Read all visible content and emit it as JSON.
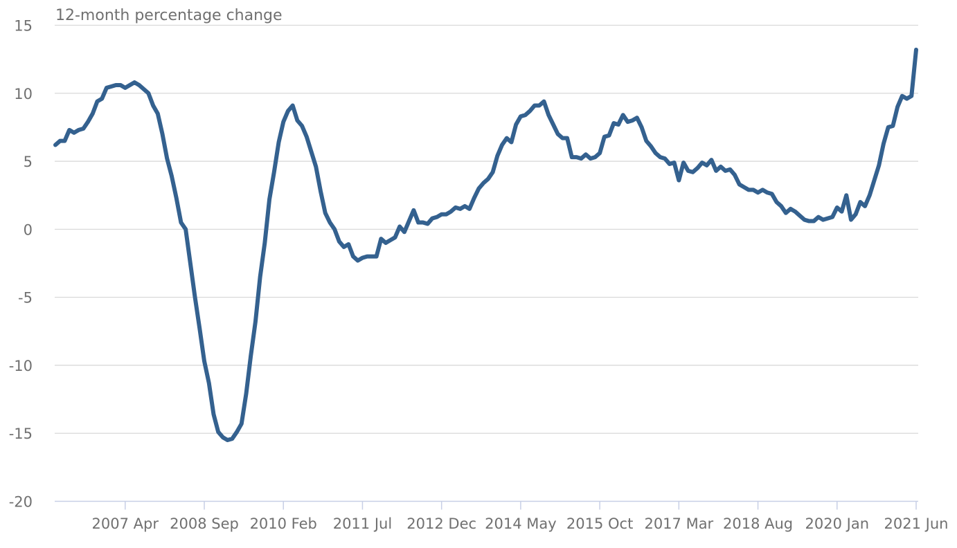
{
  "chart_data": {
    "type": "line",
    "title": "",
    "ylabel": "12-month percentage change",
    "xlabel": "",
    "ylim": [
      -20,
      15
    ],
    "yticks": [
      15,
      10,
      5,
      0,
      -5,
      -10,
      -15,
      -20
    ],
    "ytick_labels": [
      "15",
      "10",
      "5",
      "0",
      "-5",
      "-10",
      "-15",
      "-20"
    ],
    "xticks": [
      "2007 Apr",
      "2008 Sep",
      "2010 Feb",
      "2011 Jul",
      "2012 Dec",
      "2014 May",
      "2015 Oct",
      "2017 Mar",
      "2018 Aug",
      "2020 Jan",
      "2021 Jun"
    ],
    "grid": true,
    "legend": "none",
    "colors": {
      "series": "#34618f",
      "grid": "#d9d9d9",
      "axis": "#c7cfe6",
      "text": "#707070"
    },
    "series": [
      {
        "x_start": "2006 Jan",
        "x_end": "2021 Jun",
        "values": [
          6.2,
          6.5,
          6.5,
          7.3,
          7.1,
          7.3,
          7.4,
          7.9,
          8.5,
          9.4,
          9.6,
          10.4,
          10.5,
          10.6,
          10.6,
          10.4,
          10.6,
          10.8,
          10.6,
          10.3,
          10.0,
          9.1,
          8.5,
          7.0,
          5.2,
          3.9,
          2.3,
          0.5,
          0.0,
          -2.5,
          -5.0,
          -7.3,
          -9.7,
          -11.3,
          -13.6,
          -14.9,
          -15.3,
          -15.5,
          -15.4,
          -14.9,
          -14.3,
          -12.1,
          -9.3,
          -6.8,
          -3.5,
          -1.0,
          2.2,
          4.2,
          6.4,
          7.9,
          8.7,
          9.1,
          8.0,
          7.6,
          6.8,
          5.7,
          4.6,
          2.8,
          1.2,
          0.5,
          0.0,
          -0.9,
          -1.3,
          -1.1,
          -2.0,
          -2.3,
          -2.1,
          -2.0,
          -2.0,
          -2.0,
          -0.7,
          -1.0,
          -0.8,
          -0.6,
          0.2,
          -0.2,
          0.6,
          1.4,
          0.5,
          0.5,
          0.4,
          0.8,
          0.9,
          1.1,
          1.1,
          1.3,
          1.6,
          1.5,
          1.7,
          1.5,
          2.3,
          3.0,
          3.4,
          3.7,
          4.2,
          5.4,
          6.2,
          6.7,
          6.4,
          7.7,
          8.3,
          8.4,
          8.7,
          9.1,
          9.1,
          9.4,
          8.4,
          7.7,
          7.0,
          6.7,
          6.7,
          5.3,
          5.3,
          5.2,
          5.5,
          5.2,
          5.3,
          5.6,
          6.8,
          6.9,
          7.8,
          7.7,
          8.4,
          7.9,
          8.0,
          8.2,
          7.5,
          6.5,
          6.1,
          5.6,
          5.3,
          5.2,
          4.8,
          4.9,
          3.6,
          4.9,
          4.3,
          4.2,
          4.5,
          4.9,
          4.7,
          5.1,
          4.3,
          4.6,
          4.3,
          4.4,
          4.0,
          3.3,
          3.1,
          2.9,
          2.9,
          2.7,
          2.9,
          2.7,
          2.6,
          2.0,
          1.7,
          1.2,
          1.5,
          1.3,
          1.0,
          0.7,
          0.6,
          0.6,
          0.9,
          0.7,
          0.8,
          0.9,
          1.6,
          1.3,
          2.5,
          0.7,
          1.1,
          2.0,
          1.7,
          2.5,
          3.6,
          4.7,
          6.3,
          7.5,
          7.6,
          9.0,
          9.8,
          9.6,
          9.8,
          13.2
        ]
      }
    ]
  }
}
